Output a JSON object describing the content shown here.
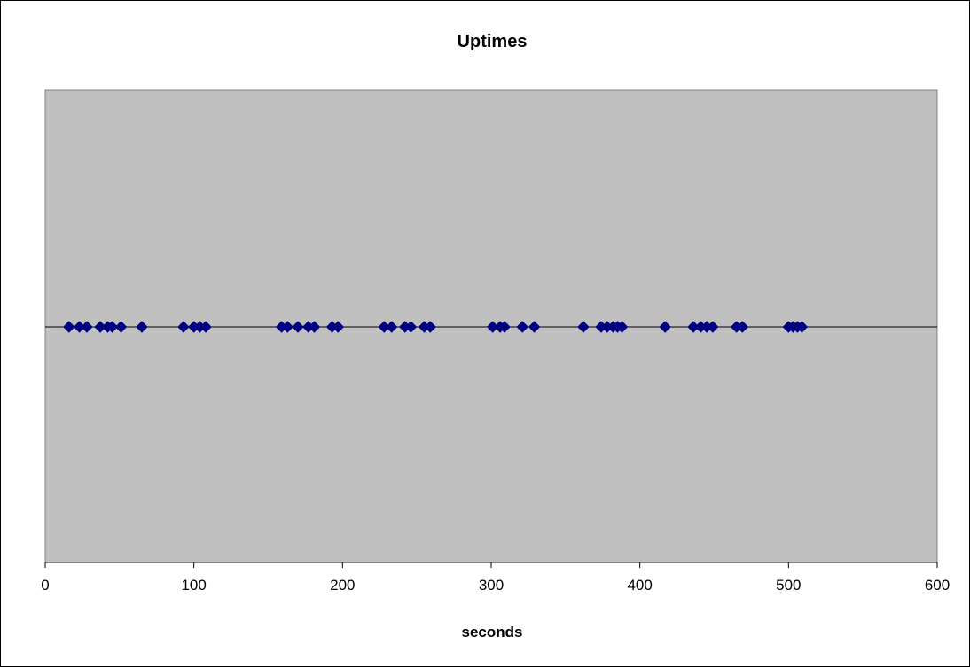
{
  "chart_data": {
    "type": "scatter",
    "title": "Uptimes",
    "xlabel": "seconds",
    "ylabel": "",
    "xlim": [
      0,
      600
    ],
    "x_ticks": [
      "0",
      "100",
      "200",
      "300",
      "400",
      "500",
      "600"
    ],
    "grid": false,
    "legend": "none",
    "marker": "diamond",
    "colors": {
      "plot_background": "#c0c0c0",
      "marker": "#000080",
      "baseline": "#000000",
      "plot_border": "#808080"
    },
    "series": [
      {
        "values_x": [
          16,
          23,
          28,
          37,
          42,
          45,
          51,
          65,
          93,
          100,
          104,
          108,
          159,
          163,
          170,
          177,
          181,
          193,
          197,
          228,
          233,
          242,
          246,
          255,
          259,
          301,
          306,
          309,
          321,
          329,
          362,
          374,
          378,
          382,
          385,
          388,
          417,
          436,
          441,
          445,
          449,
          465,
          469,
          500,
          503,
          506,
          509
        ],
        "values_y": [
          0,
          0,
          0,
          0,
          0,
          0,
          0,
          0,
          0,
          0,
          0,
          0,
          0,
          0,
          0,
          0,
          0,
          0,
          0,
          0,
          0,
          0,
          0,
          0,
          0,
          0,
          0,
          0,
          0,
          0,
          0,
          0,
          0,
          0,
          0,
          0,
          0,
          0,
          0,
          0,
          0,
          0,
          0,
          0,
          0,
          0,
          0
        ]
      }
    ]
  }
}
